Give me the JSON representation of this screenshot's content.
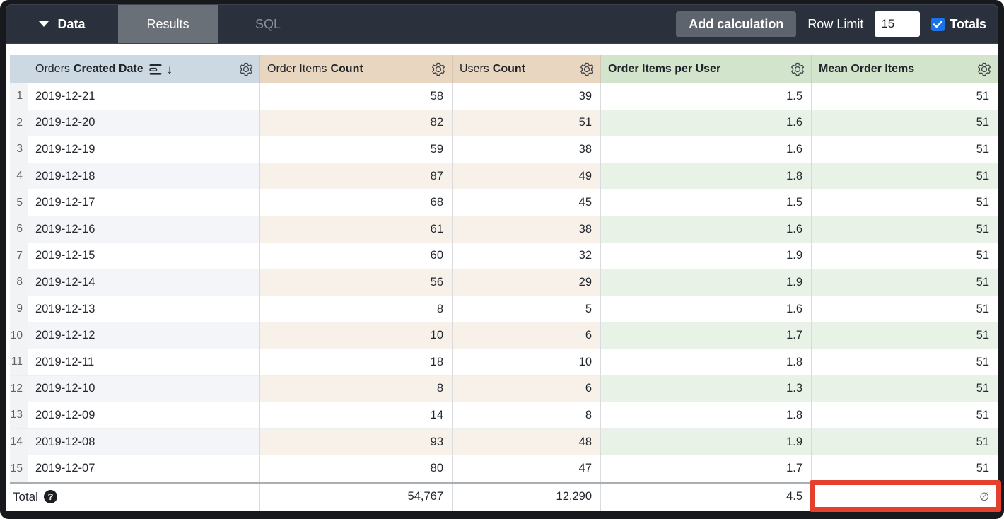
{
  "topbar": {
    "data_label": "Data",
    "tabs": [
      {
        "label": "Results",
        "active": true
      },
      {
        "label": "SQL",
        "active": false
      }
    ],
    "add_calculation_label": "Add calculation",
    "row_limit_label": "Row Limit",
    "row_limit_value": "15",
    "totals_label": "Totals",
    "totals_checked": true
  },
  "icons": {
    "sort_desc_arrow": "↓",
    "help": "?"
  },
  "table": {
    "columns": [
      {
        "label_regular": "Orders",
        "label_bold": "Created Date",
        "type": "dimension",
        "sorted": "desc"
      },
      {
        "label_regular": "Order Items",
        "label_bold": "Count",
        "type": "measure"
      },
      {
        "label_regular": "Users",
        "label_bold": "Count",
        "type": "measure"
      },
      {
        "label_regular": "",
        "label_bold": "Order Items per User",
        "type": "measure"
      },
      {
        "label_regular": "",
        "label_bold": "Mean Order Items",
        "type": "measure"
      }
    ],
    "rows": [
      {
        "num": "1",
        "date": "2019-12-21",
        "order_items_count": "58",
        "users_count": "39",
        "order_items_per_user": "1.5",
        "mean_order_items": "51"
      },
      {
        "num": "2",
        "date": "2019-12-20",
        "order_items_count": "82",
        "users_count": "51",
        "order_items_per_user": "1.6",
        "mean_order_items": "51"
      },
      {
        "num": "3",
        "date": "2019-12-19",
        "order_items_count": "59",
        "users_count": "38",
        "order_items_per_user": "1.6",
        "mean_order_items": "51"
      },
      {
        "num": "4",
        "date": "2019-12-18",
        "order_items_count": "87",
        "users_count": "49",
        "order_items_per_user": "1.8",
        "mean_order_items": "51"
      },
      {
        "num": "5",
        "date": "2019-12-17",
        "order_items_count": "68",
        "users_count": "45",
        "order_items_per_user": "1.5",
        "mean_order_items": "51"
      },
      {
        "num": "6",
        "date": "2019-12-16",
        "order_items_count": "61",
        "users_count": "38",
        "order_items_per_user": "1.6",
        "mean_order_items": "51"
      },
      {
        "num": "7",
        "date": "2019-12-15",
        "order_items_count": "60",
        "users_count": "32",
        "order_items_per_user": "1.9",
        "mean_order_items": "51"
      },
      {
        "num": "8",
        "date": "2019-12-14",
        "order_items_count": "56",
        "users_count": "29",
        "order_items_per_user": "1.9",
        "mean_order_items": "51"
      },
      {
        "num": "9",
        "date": "2019-12-13",
        "order_items_count": "8",
        "users_count": "5",
        "order_items_per_user": "1.6",
        "mean_order_items": "51"
      },
      {
        "num": "10",
        "date": "2019-12-12",
        "order_items_count": "10",
        "users_count": "6",
        "order_items_per_user": "1.7",
        "mean_order_items": "51"
      },
      {
        "num": "11",
        "date": "2019-12-11",
        "order_items_count": "18",
        "users_count": "10",
        "order_items_per_user": "1.8",
        "mean_order_items": "51"
      },
      {
        "num": "12",
        "date": "2019-12-10",
        "order_items_count": "8",
        "users_count": "6",
        "order_items_per_user": "1.3",
        "mean_order_items": "51"
      },
      {
        "num": "13",
        "date": "2019-12-09",
        "order_items_count": "14",
        "users_count": "8",
        "order_items_per_user": "1.8",
        "mean_order_items": "51"
      },
      {
        "num": "14",
        "date": "2019-12-08",
        "order_items_count": "93",
        "users_count": "48",
        "order_items_per_user": "1.9",
        "mean_order_items": "51"
      },
      {
        "num": "15",
        "date": "2019-12-07",
        "order_items_count": "80",
        "users_count": "47",
        "order_items_per_user": "1.7",
        "mean_order_items": "51"
      }
    ],
    "total": {
      "label": "Total",
      "order_items_count": "54,767",
      "users_count": "12,290",
      "order_items_per_user": "4.5",
      "mean_order_items": "∅"
    }
  },
  "colors": {
    "topbar_bg": "#2b313c",
    "active_tab_bg": "#6a7078",
    "checkbox_accent": "#1a73e8",
    "dimension_header_bg": "#cdd9e2",
    "measure_header_tan_bg": "#e9d6c0",
    "measure_header_green_bg": "#d3e4cc",
    "annotation_highlight": "#e5402d"
  },
  "annotation": {
    "note": "red highlight box around empty Mean Order Items total cell"
  }
}
